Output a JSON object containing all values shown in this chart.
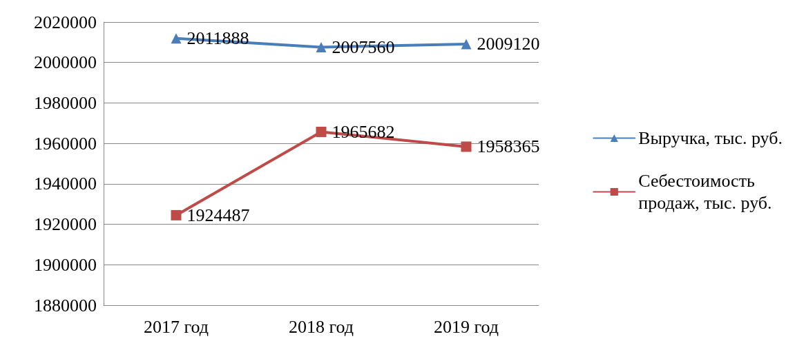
{
  "chart_data": {
    "type": "line",
    "categories": [
      "2017 год",
      "2018 год",
      "2019 год"
    ],
    "series": [
      {
        "name": "Выручка, тыс. руб.",
        "color": "#4a7ebb",
        "marker": "triangle",
        "values": [
          2011888,
          2007560,
          2009120
        ]
      },
      {
        "name": "Себестоимость продаж, тыс. руб.",
        "color": "#be4b48",
        "marker": "square",
        "values": [
          1924487,
          1965682,
          1958365
        ]
      }
    ],
    "ylim": [
      1880000,
      2020000
    ],
    "yticks": [
      1880000,
      1900000,
      1920000,
      1940000,
      1960000,
      1980000,
      2000000,
      2020000
    ],
    "grid": "y",
    "legend": "right",
    "data_labels": true,
    "line_style": "solid"
  }
}
